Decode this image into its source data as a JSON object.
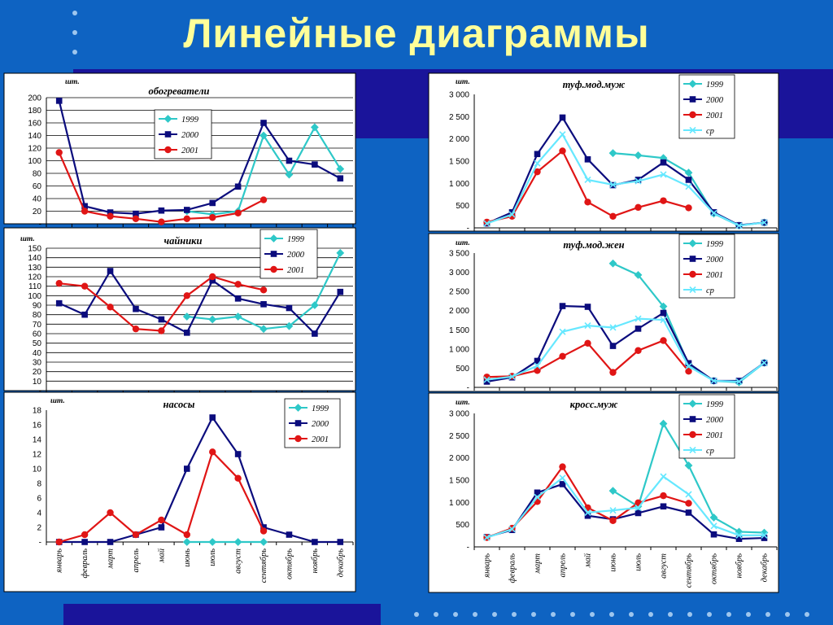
{
  "title": "Линейные диаграммы",
  "months": [
    "январь",
    "февраль",
    "март",
    "апрель",
    "май",
    "июнь",
    "июль",
    "август",
    "сентябрь",
    "октябрь",
    "ноябрь",
    "декабрь"
  ],
  "colors": {
    "1999": "#2ec8c8",
    "2000": "#0b0c7d",
    "2001": "#e01515",
    "cp": "#66e8ff"
  },
  "chart_data": [
    {
      "id": "heaters",
      "type": "line",
      "unit": "шт.",
      "title": "обогреватели",
      "y_ticks": [
        "200",
        "180",
        "160",
        "140",
        "120",
        "100",
        "80",
        "60",
        "40",
        "20",
        "-"
      ],
      "ylim": [
        0,
        200
      ],
      "grid": true,
      "legend": "top-center",
      "series": [
        {
          "name": "1999",
          "marker": "diamond",
          "values": [
            null,
            null,
            null,
            null,
            null,
            20,
            15,
            20,
            140,
            78,
            153,
            87
          ]
        },
        {
          "name": "2000",
          "marker": "square",
          "values": [
            195,
            28,
            18,
            16,
            21,
            22,
            33,
            59,
            160,
            100,
            94,
            72
          ]
        },
        {
          "name": "2001",
          "marker": "circle",
          "values": [
            113,
            20,
            12,
            8,
            3,
            8,
            10,
            17,
            38,
            null,
            null,
            null
          ]
        }
      ]
    },
    {
      "id": "kettles",
      "type": "line",
      "unit": "шт.",
      "title": "чайники",
      "y_ticks": [
        "150",
        "140",
        "130",
        "120",
        "110",
        "100",
        "90",
        "80",
        "70",
        "60",
        "50",
        "40",
        "30",
        "20",
        "10",
        "-"
      ],
      "ylim": [
        0,
        150
      ],
      "grid": true,
      "legend": "top-right",
      "series": [
        {
          "name": "1999",
          "marker": "diamond",
          "values": [
            null,
            null,
            null,
            null,
            null,
            78,
            75,
            78,
            65,
            68,
            90,
            145
          ]
        },
        {
          "name": "2000",
          "marker": "square",
          "values": [
            92,
            80,
            126,
            86,
            75,
            61,
            116,
            97,
            91,
            87,
            60,
            104
          ]
        },
        {
          "name": "2001",
          "marker": "circle",
          "values": [
            113,
            110,
            88,
            65,
            63,
            100,
            120,
            112,
            106,
            null,
            null,
            null
          ]
        }
      ]
    },
    {
      "id": "pumps",
      "type": "line",
      "unit": "шт.",
      "title": "насосы",
      "y_ticks": [
        "18",
        "16",
        "14",
        "12",
        "10",
        "8",
        "6",
        "4",
        "2",
        "-"
      ],
      "ylim": [
        0,
        18
      ],
      "grid": false,
      "legend": "top-right",
      "series": [
        {
          "name": "1999",
          "marker": "diamond",
          "values": [
            null,
            null,
            null,
            null,
            null,
            0,
            0,
            0,
            0,
            null,
            null,
            null
          ]
        },
        {
          "name": "2000",
          "marker": "square",
          "values": [
            0,
            0,
            0,
            1,
            2,
            10,
            17,
            12,
            2,
            1,
            0,
            0
          ]
        },
        {
          "name": "2001",
          "marker": "circle",
          "values": [
            0,
            1,
            4,
            1,
            3,
            1,
            12.3,
            8.7,
            1.5,
            null,
            null,
            null
          ]
        }
      ]
    },
    {
      "id": "shoes-men",
      "type": "line",
      "unit": "шт.",
      "title": "туф.мод.муж",
      "y_ticks": [
        "3 000",
        "2 500",
        "2 000",
        "1 500",
        "1 000",
        "500",
        "-"
      ],
      "ylim": [
        0,
        3000
      ],
      "grid": false,
      "legend": "top-right",
      "series": [
        {
          "name": "1999",
          "marker": "diamond",
          "values": [
            null,
            null,
            null,
            null,
            null,
            1680,
            1630,
            1570,
            1240,
            320,
            50,
            120
          ]
        },
        {
          "name": "2000",
          "marker": "square",
          "values": [
            100,
            350,
            1660,
            2480,
            1540,
            960,
            1080,
            1470,
            1080,
            350,
            60,
            120
          ]
        },
        {
          "name": "2001",
          "marker": "circle",
          "values": [
            130,
            260,
            1260,
            1730,
            580,
            260,
            460,
            610,
            450,
            null,
            null,
            null
          ]
        },
        {
          "name": "ср",
          "marker": "x",
          "values": [
            100,
            300,
            1450,
            2100,
            1080,
            970,
            1050,
            1200,
            930,
            330,
            50,
            120
          ]
        }
      ]
    },
    {
      "id": "shoes-women",
      "type": "line",
      "unit": "шт.",
      "title": "туф.мод.жен",
      "y_ticks": [
        "3 500",
        "3 000",
        "2 500",
        "2 000",
        "1 500",
        "1 000",
        "500",
        "-"
      ],
      "ylim": [
        0,
        3500
      ],
      "grid": false,
      "legend": "top-right",
      "series": [
        {
          "name": "1999",
          "marker": "diamond",
          "values": [
            null,
            null,
            null,
            null,
            null,
            3230,
            2930,
            2110,
            600,
            170,
            130,
            640
          ]
        },
        {
          "name": "2000",
          "marker": "square",
          "values": [
            150,
            260,
            690,
            2120,
            2100,
            1080,
            1530,
            1940,
            630,
            170,
            170,
            640
          ]
        },
        {
          "name": "2001",
          "marker": "circle",
          "values": [
            270,
            290,
            440,
            810,
            1150,
            390,
            960,
            1220,
            420,
            null,
            null,
            null
          ]
        },
        {
          "name": "ср",
          "marker": "x",
          "values": [
            200,
            280,
            560,
            1450,
            1610,
            1560,
            1790,
            1760,
            550,
            170,
            150,
            640
          ]
        }
      ]
    },
    {
      "id": "sneakers-men",
      "type": "line",
      "unit": "шт.",
      "title": "кросс.муж",
      "y_ticks": [
        "3 000",
        "2 500",
        "2 000",
        "1 500",
        "1 000",
        "500",
        "-"
      ],
      "ylim": [
        0,
        3000
      ],
      "grid": false,
      "legend": "top-right",
      "series": [
        {
          "name": "1999",
          "marker": "diamond",
          "values": [
            null,
            null,
            null,
            null,
            null,
            1260,
            910,
            2770,
            1830,
            660,
            340,
            320
          ]
        },
        {
          "name": "2000",
          "marker": "square",
          "values": [
            220,
            380,
            1220,
            1410,
            700,
            620,
            760,
            910,
            770,
            280,
            180,
            200
          ]
        },
        {
          "name": "2001",
          "marker": "circle",
          "values": [
            210,
            420,
            1020,
            1800,
            880,
            590,
            990,
            1150,
            980,
            null,
            null,
            null
          ]
        },
        {
          "name": "ср",
          "marker": "x",
          "values": [
            210,
            400,
            1120,
            1550,
            770,
            820,
            880,
            1580,
            1180,
            470,
            260,
            260
          ]
        }
      ]
    }
  ]
}
